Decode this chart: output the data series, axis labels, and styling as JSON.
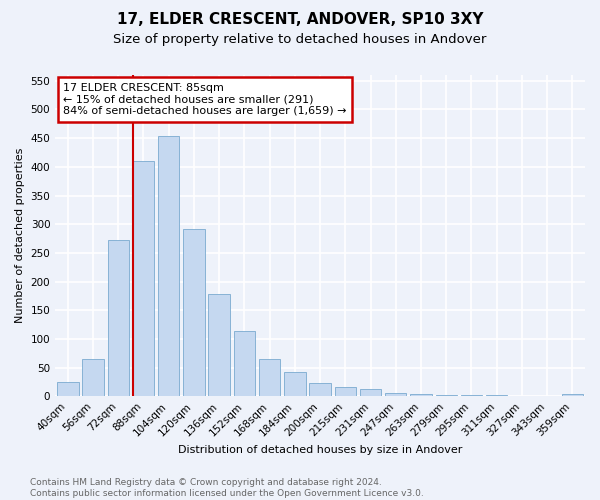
{
  "title": "17, ELDER CRESCENT, ANDOVER, SP10 3XY",
  "subtitle": "Size of property relative to detached houses in Andover",
  "xlabel": "Distribution of detached houses by size in Andover",
  "ylabel": "Number of detached properties",
  "footer_line1": "Contains HM Land Registry data © Crown copyright and database right 2024.",
  "footer_line2": "Contains public sector information licensed under the Open Government Licence v3.0.",
  "categories": [
    "40sqm",
    "56sqm",
    "72sqm",
    "88sqm",
    "104sqm",
    "120sqm",
    "136sqm",
    "152sqm",
    "168sqm",
    "184sqm",
    "200sqm",
    "215sqm",
    "231sqm",
    "247sqm",
    "263sqm",
    "279sqm",
    "295sqm",
    "311sqm",
    "327sqm",
    "343sqm",
    "359sqm"
  ],
  "values": [
    25,
    65,
    272,
    410,
    453,
    292,
    179,
    113,
    65,
    43,
    24,
    16,
    12,
    6,
    4,
    3,
    2,
    2,
    1,
    1,
    4
  ],
  "bar_color": "#c5d8f0",
  "bar_edge_color": "#7aaad0",
  "annotation_title": "17 ELDER CRESCENT: 85sqm",
  "annotation_line1": "← 15% of detached houses are smaller (291)",
  "annotation_line2": "84% of semi-detached houses are larger (1,659) →",
  "annotation_box_color": "#ffffff",
  "annotation_box_edgecolor": "#cc0000",
  "vline_color": "#cc0000",
  "ylim": [
    0,
    560
  ],
  "yticks": [
    0,
    50,
    100,
    150,
    200,
    250,
    300,
    350,
    400,
    450,
    500,
    550
  ],
  "background_color": "#eef2fa",
  "grid_color": "#ffffff",
  "title_fontsize": 11,
  "subtitle_fontsize": 9.5,
  "axis_label_fontsize": 8,
  "tick_fontsize": 7.5,
  "footer_fontsize": 6.5,
  "annotation_fontsize": 8
}
